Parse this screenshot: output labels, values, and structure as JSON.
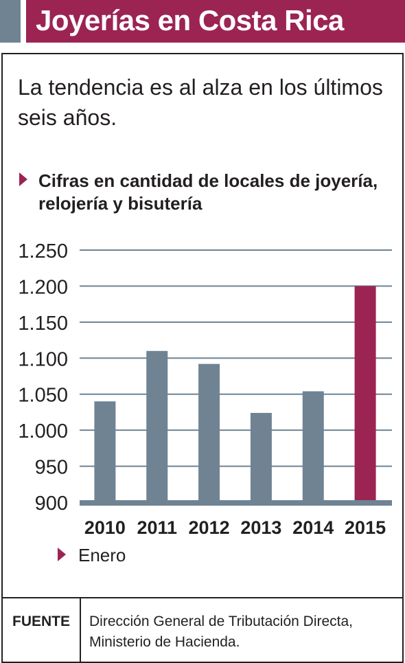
{
  "header": {
    "title": "Joyerías en Costa Rica"
  },
  "subtitle": "La tendencia es al alza en los últimos seis años.",
  "colors": {
    "header_band": "#9b2452",
    "header_accent": "#6f8393",
    "bar_default": "#6f8393",
    "bar_highlight": "#9b2452",
    "gridline": "#6f8393",
    "text": "#231f20"
  },
  "chart_data": {
    "type": "bar",
    "title": "Cifras en cantidad de locales de joyería, relojería y bisutería",
    "xlabel": "",
    "ylabel": "",
    "categories": [
      "2010",
      "2011",
      "2012",
      "2013",
      "2014",
      "2015"
    ],
    "values": [
      1040,
      1110,
      1092,
      1024,
      1054,
      1200
    ],
    "highlight_index": 5,
    "ylim": [
      900,
      1250
    ],
    "yticks": [
      900,
      950,
      1000,
      1050,
      1100,
      1150,
      1200,
      1250
    ],
    "ytick_labels": [
      "900",
      "950",
      "1.000",
      "1.050",
      "1.100",
      "1.150",
      "1.200",
      "1.250"
    ],
    "grid": true,
    "note": "Enero"
  },
  "footer": {
    "source_label": "FUENTE",
    "source_line1": "Dirección General de Tributación Directa,",
    "source_line2": "Ministerio de Hacienda."
  }
}
